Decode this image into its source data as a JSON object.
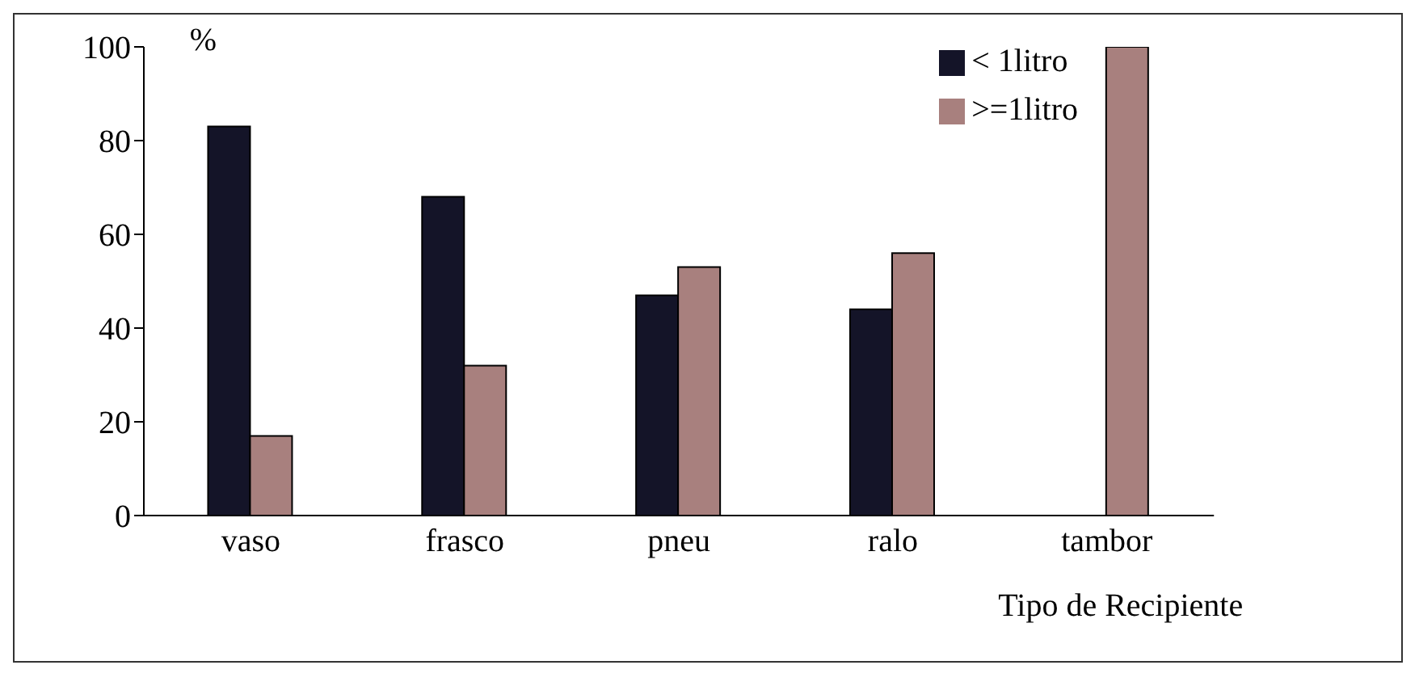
{
  "chart_data": {
    "type": "bar",
    "xlabel": "Tipo de Recipiente",
    "ylabel": "%",
    "categories": [
      "vaso",
      "frasco",
      "pneu",
      "ralo",
      "tambor"
    ],
    "series": [
      {
        "name": "< 1litro",
        "color": "#141428",
        "values": [
          83,
          68,
          47,
          44,
          0
        ]
      },
      {
        "name": ">=1litro",
        "color": "#a8807e",
        "values": [
          17,
          32,
          53,
          56,
          100
        ]
      }
    ],
    "ylim": [
      0,
      100
    ],
    "yticks": [
      0,
      20,
      40,
      60,
      80,
      100
    ],
    "grid": false,
    "legend": "top right"
  }
}
